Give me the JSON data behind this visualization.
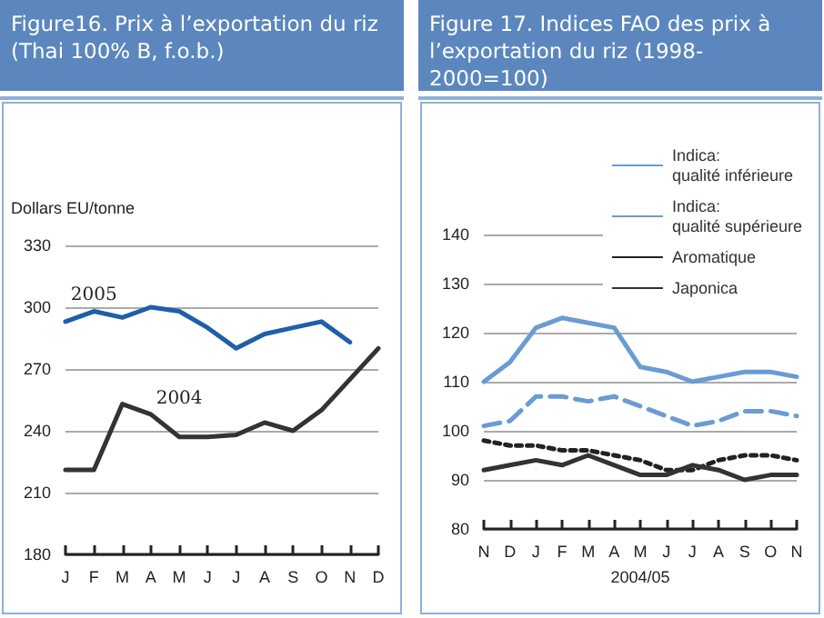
{
  "chart_data": [
    {
      "type": "line",
      "title": "Figure16. Prix à l’exportation du riz (Thai 100% B, f.o.b.)",
      "ylabel": "Dollars EU/tonne",
      "categories": [
        "J",
        "F",
        "M",
        "A",
        "M",
        "J",
        "J",
        "A",
        "S",
        "O",
        "N",
        "D"
      ],
      "series": [
        {
          "name": "2005",
          "color": "#1f5fa8",
          "values": [
            293,
            298,
            295,
            300,
            298,
            290,
            280,
            287,
            290,
            293,
            283,
            null
          ]
        },
        {
          "name": "2004",
          "color": "#333333",
          "values": [
            221,
            221,
            253,
            248,
            237,
            237,
            238,
            244,
            240,
            250,
            265,
            280
          ]
        }
      ],
      "ylim": [
        180,
        330
      ],
      "yticks": [
        180,
        210,
        240,
        270,
        300,
        330
      ],
      "grid": "y",
      "legend": false,
      "marker": "none",
      "line_style": "solid"
    },
    {
      "type": "line",
      "title": "Figure 17. Indices FAO des prix à l’exportation du riz (1998-2000=100)",
      "xlabel": "2004/05",
      "categories": [
        "N",
        "D",
        "J",
        "F",
        "M",
        "A",
        "M",
        "J",
        "J",
        "A",
        "S",
        "O",
        "N"
      ],
      "series": [
        {
          "name": "Indica:\nqualité inférieure",
          "color": "#6a9bd3",
          "line_style": "solid",
          "values": [
            110,
            114,
            121,
            123,
            122,
            121,
            113,
            112,
            110,
            111,
            112,
            112,
            111
          ]
        },
        {
          "name": "Indica:\nqualité supérieure",
          "color": "#6a9bd3",
          "line_style": "dashed",
          "values": [
            101,
            102,
            107,
            107,
            106,
            107,
            105,
            103,
            101,
            102,
            104,
            104,
            103
          ]
        },
        {
          "name": "Aromatique",
          "color": "#222222",
          "line_style": "dotted",
          "values": [
            98,
            97,
            97,
            96,
            96,
            95,
            94,
            92,
            92,
            94,
            95,
            95,
            94
          ]
        },
        {
          "name": "Japonica",
          "color": "#333333",
          "line_style": "solid",
          "values": [
            92,
            93,
            94,
            93,
            95,
            93,
            91,
            91,
            93,
            92,
            90,
            91,
            91
          ]
        }
      ],
      "ylim": [
        80,
        140
      ],
      "yticks": [
        80,
        90,
        100,
        110,
        120,
        130,
        140
      ],
      "grid": "y",
      "legend": "top right",
      "marker": "none"
    }
  ]
}
